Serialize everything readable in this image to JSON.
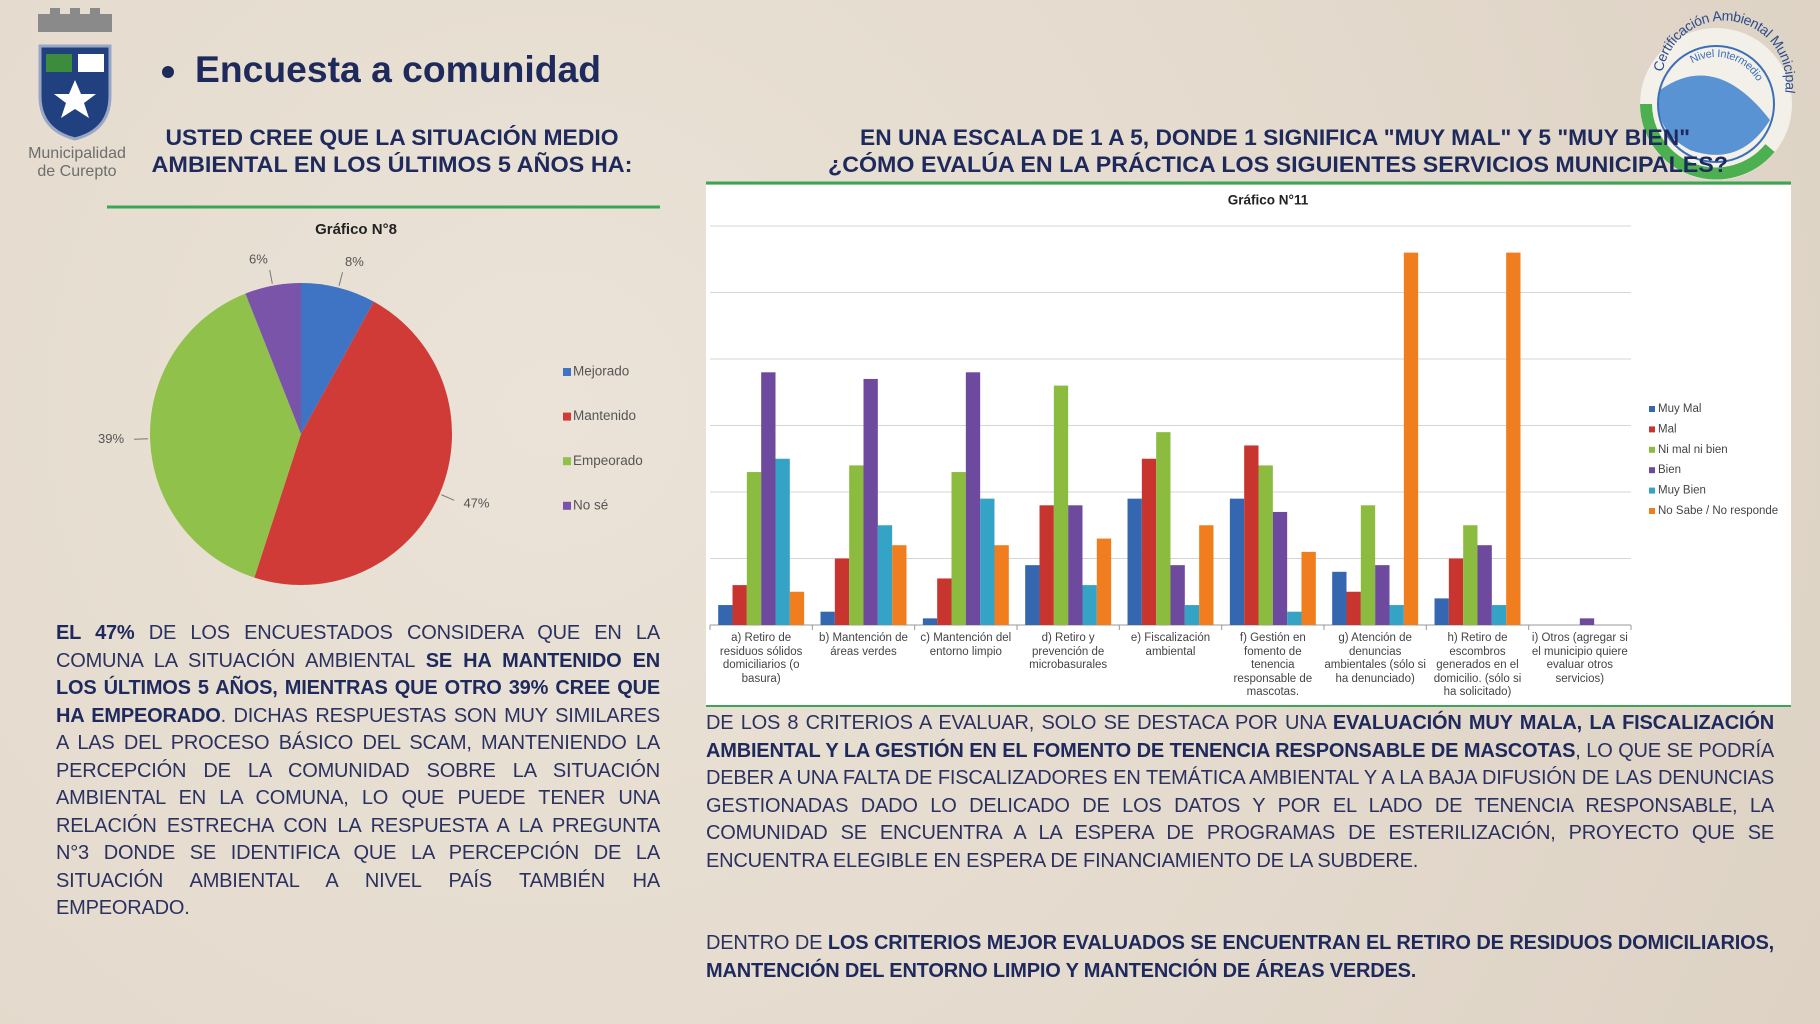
{
  "logo": {
    "name_lines": [
      "Municipalidad",
      "de Curepto"
    ]
  },
  "certification": {
    "outer": "Certificación Ambiental Municipal",
    "inner": "Nivel Intermedio"
  },
  "header": {
    "title": "Encuesta a comunidad"
  },
  "left_question": [
    "USTED CREE QUE LA SITUACIÓN MEDIO",
    "AMBIENTAL EN LOS ÚLTIMOS 5 AÑOS HA:"
  ],
  "right_question": [
    "EN UNA ESCALA DE 1 A 5, DONDE 1 SIGNIFICA \"MUY MAL\" Y 5 \"MUY BIEN\"",
    "¿CÓMO EVALÚA EN LA PRÁCTICA LOS SIGUIENTES SERVICIOS MUNICIPALES?"
  ],
  "chart_data": [
    {
      "type": "pie",
      "title": "Gráfico N°8",
      "categories": [
        "Mejorado",
        "Mantenido",
        "Empeorado",
        "No sé"
      ],
      "values": [
        8,
        47,
        39,
        6
      ],
      "value_labels": [
        "8%",
        "47%",
        "39%",
        "6%"
      ],
      "colors": [
        "#3f73c4",
        "#d13b37",
        "#8fc14b",
        "#7a54a8"
      ],
      "legend": "right"
    },
    {
      "type": "bar",
      "title": "Gráfico N°11",
      "categories": [
        "a) Retiro de residuos sólidos domiciliarios (o basura)",
        "b) Mantención de áreas verdes",
        "c) Mantención del entorno limpio",
        "d) Retiro y prevención de microbasurales",
        "e) Fiscalización ambiental",
        "f) Gestión en fomento de tenencia responsable de mascotas.",
        "g) Atención de denuncias ambientales (sólo si ha denunciado)",
        "h) Retiro de escombros generados en el domicilio. (sólo si ha solicitado)",
        "i) Otros (agregar si el municipio quiere evaluar otros servicios)"
      ],
      "series": [
        {
          "name": "Muy Mal",
          "color": "#3566b0",
          "values": [
            0.3,
            0.2,
            0.1,
            0.9,
            1.9,
            1.9,
            0.8,
            0.4,
            0
          ]
        },
        {
          "name": "Mal",
          "color": "#c8352f",
          "values": [
            0.6,
            1.0,
            0.7,
            1.8,
            2.5,
            2.7,
            0.5,
            1.0,
            0
          ]
        },
        {
          "name": "Ni mal ni bien",
          "color": "#8bbb3f",
          "values": [
            2.3,
            2.4,
            2.3,
            3.6,
            2.9,
            2.4,
            1.8,
            1.5,
            0
          ]
        },
        {
          "name": "Bien",
          "color": "#6d4a9e",
          "values": [
            3.8,
            3.7,
            3.8,
            1.8,
            0.9,
            1.7,
            0.9,
            1.2,
            0.1
          ]
        },
        {
          "name": "Muy Bien",
          "color": "#34a3c6",
          "values": [
            2.5,
            1.5,
            1.9,
            0.6,
            0.3,
            0.2,
            0.3,
            0.3,
            0
          ]
        },
        {
          "name": "No Sabe / No responde",
          "color": "#f07e1e",
          "values": [
            0.5,
            1.2,
            1.2,
            1.3,
            1.5,
            1.1,
            5.6,
            5.6,
            0
          ]
        }
      ],
      "ylim": [
        0,
        6
      ],
      "yticks": [
        0,
        1,
        2,
        3,
        4,
        5,
        6
      ],
      "grid": true,
      "legend": "right"
    }
  ],
  "left_paragraph": {
    "parts": [
      {
        "text": "EL 47%",
        "bold": true
      },
      {
        "text": " DE LOS ENCUESTADOS CONSIDERA QUE EN LA COMUNA LA SITUACIÓN AMBIENTAL ",
        "bold": false
      },
      {
        "text": "SE HA MANTENIDO EN LOS ÚLTIMOS 5 AÑOS, MIENTRAS QUE OTRO 39% CREE QUE HA EMPEORADO",
        "bold": true
      },
      {
        "text": ". DICHAS RESPUESTAS SON MUY SIMILARES A LAS DEL PROCESO BÁSICO DEL SCAM, MANTENIENDO LA PERCEPCIÓN DE LA COMUNIDAD SOBRE LA SITUACIÓN AMBIENTAL EN LA COMUNA, LO QUE PUEDE TENER UNA RELACIÓN ESTRECHA CON LA RESPUESTA A LA PREGUNTA N°3 DONDE SE IDENTIFICA QUE LA PERCEPCIÓN DE LA SITUACIÓN AMBIENTAL A NIVEL PAÍS TAMBIÉN HA EMPEORADO.",
        "bold": false
      }
    ]
  },
  "right_paragraphs": [
    {
      "parts": [
        {
          "text": "DE LOS 8 CRITERIOS A EVALUAR, SOLO SE DESTACA POR UNA ",
          "bold": false
        },
        {
          "text": "EVALUACIÓN MUY MALA, LA FISCALIZACIÓN AMBIENTAL Y LA GESTIÓN EN EL FOMENTO DE TENENCIA RESPONSABLE DE MASCOTAS",
          "bold": true
        },
        {
          "text": ", LO QUE SE PODRÍA DEBER A UNA FALTA DE FISCALIZADORES EN TEMÁTICA AMBIENTAL Y A LA BAJA DIFUSIÓN DE LAS DENUNCIAS GESTIONADAS DADO LO DELICADO DE LOS DATOS Y POR EL LADO DE TENENCIA RESPONSABLE, LA COMUNIDAD SE ENCUENTRA A LA ESPERA DE PROGRAMAS DE ESTERILIZACIÓN, PROYECTO QUE SE ENCUENTRA ELEGIBLE EN ESPERA DE FINANCIAMIENTO DE LA SUBDERE.",
          "bold": false
        }
      ]
    },
    {
      "parts": [
        {
          "text": "DENTRO DE ",
          "bold": false
        },
        {
          "text": "LOS CRITERIOS MEJOR EVALUADOS SE ENCUENTRAN EL RETIRO DE RESIDUOS DOMICILIARIOS, MANTENCIÓN DEL ENTORNO LIMPIO Y MANTENCIÓN DE ÁREAS VERDES.",
          "bold": true
        }
      ]
    }
  ]
}
